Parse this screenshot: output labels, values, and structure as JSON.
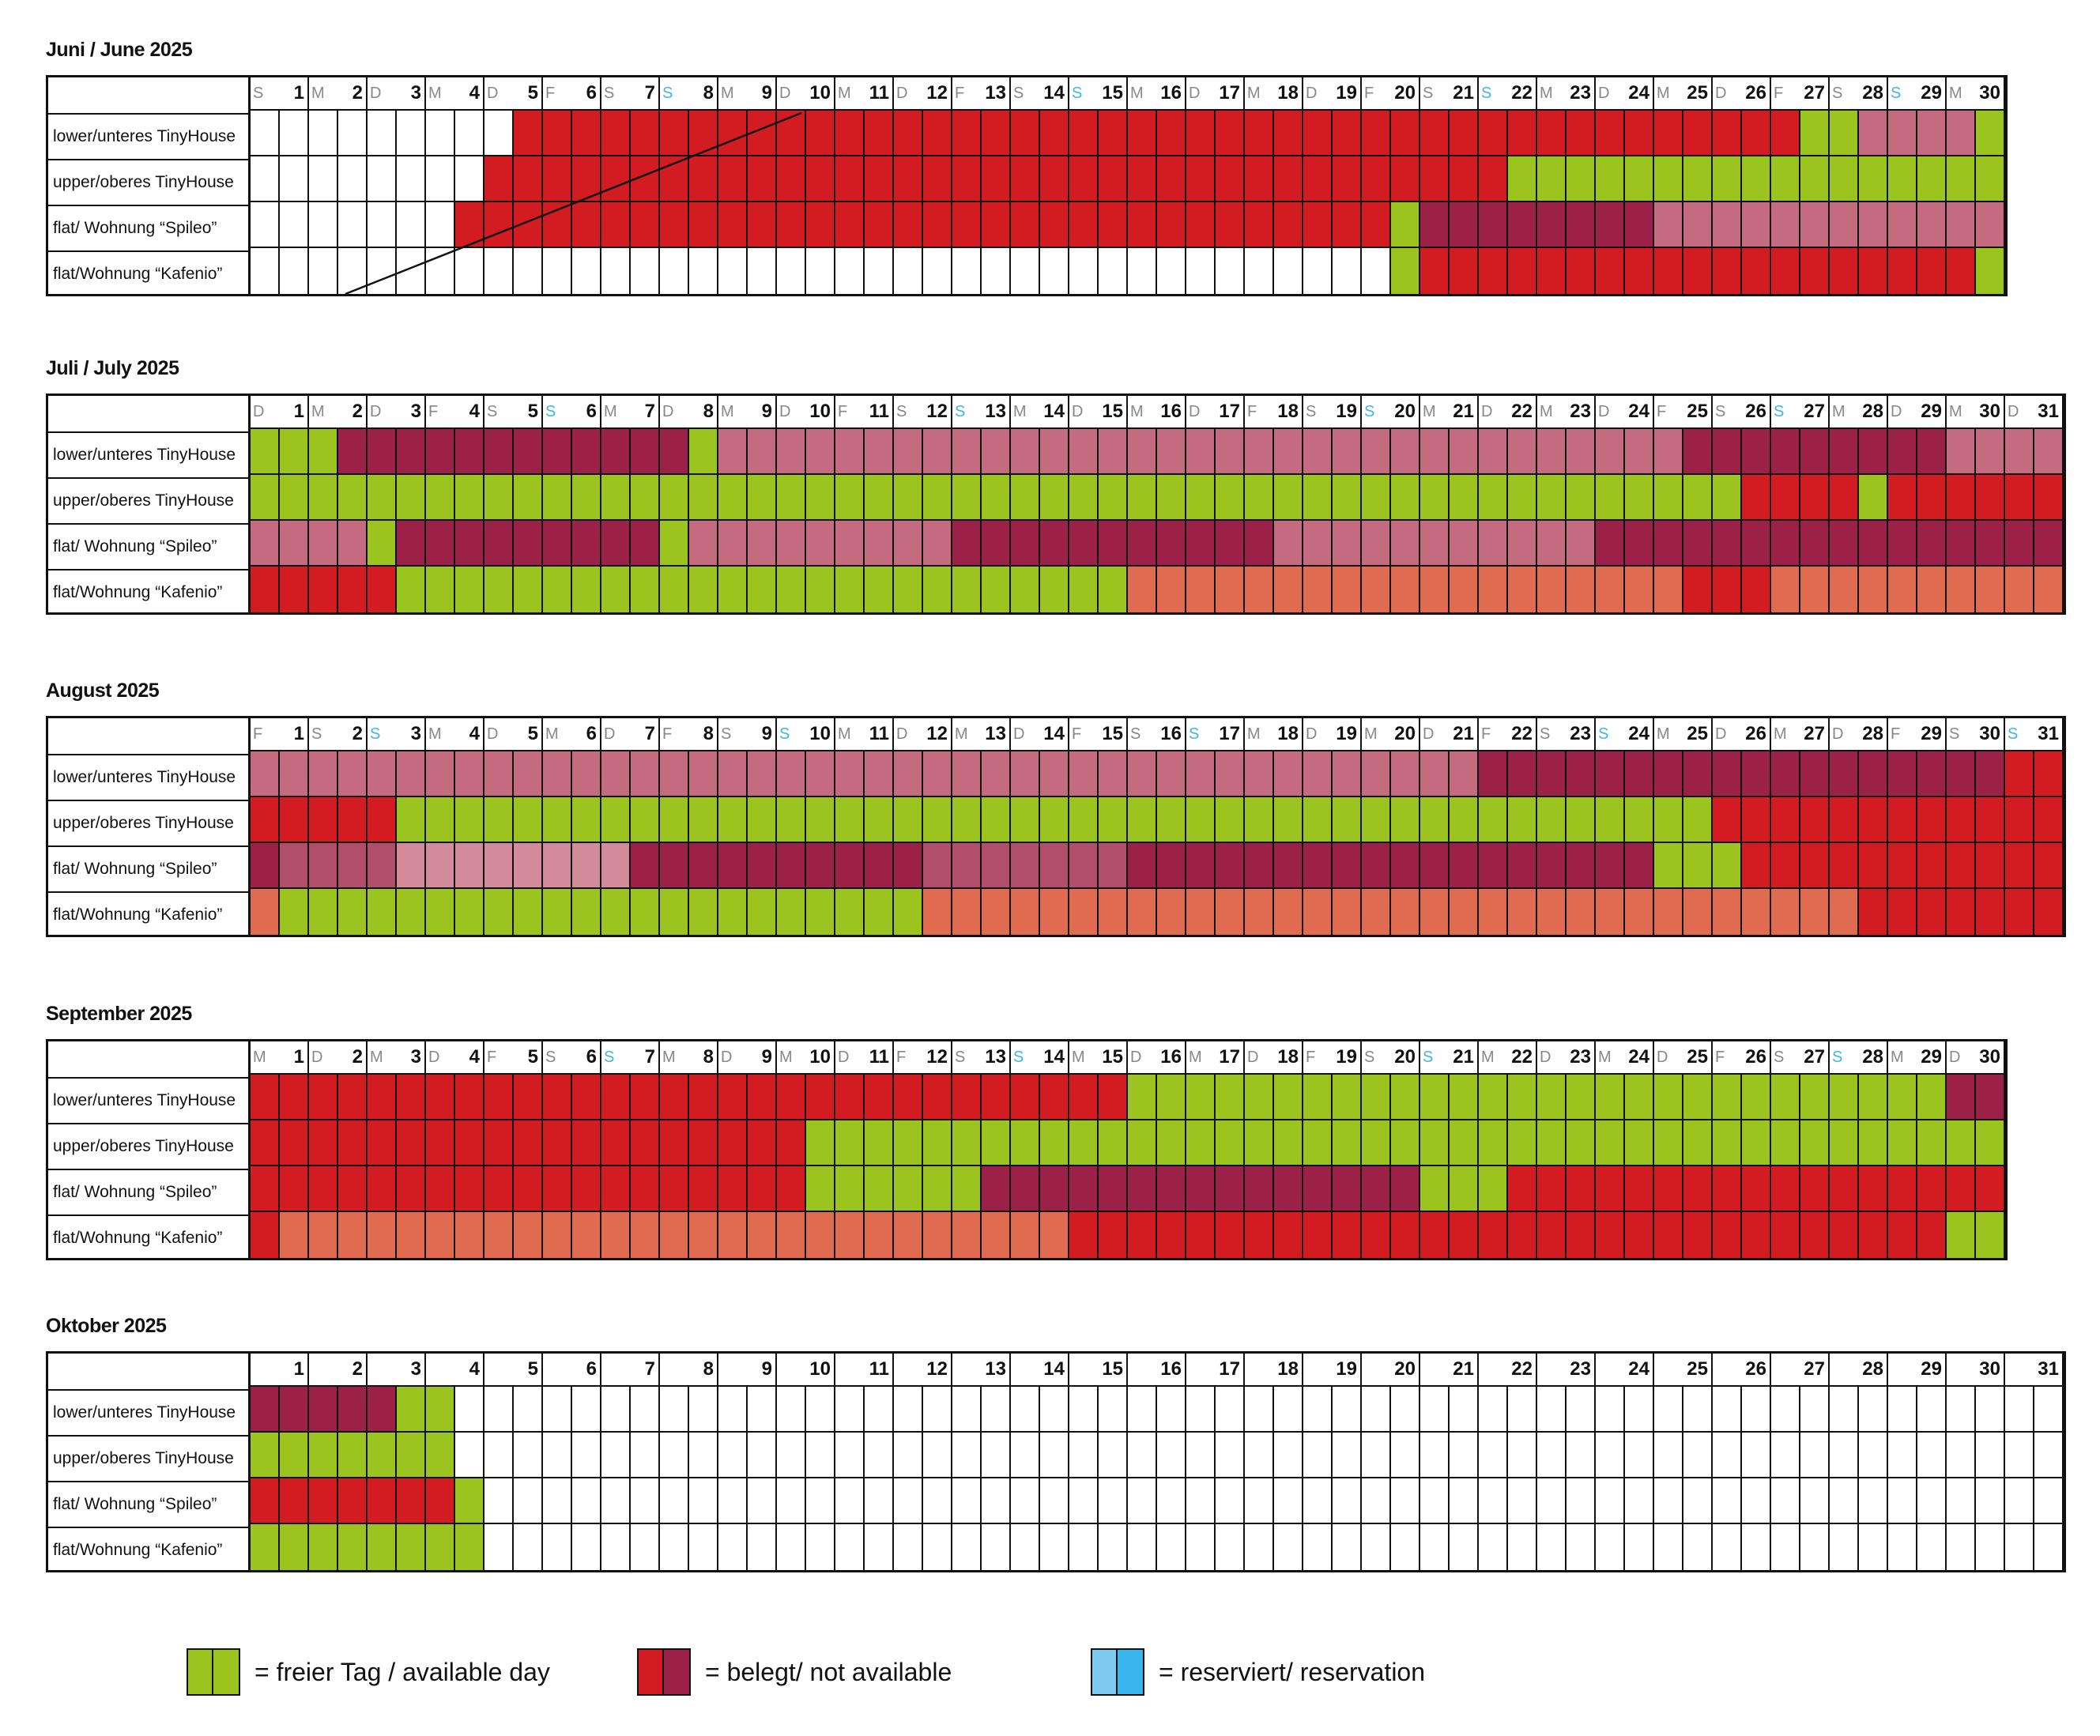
{
  "colors": {
    "free": "#9bc41e",
    "booked_red": "#d31b22",
    "booked_dark": "#9b2149",
    "booked_pink": "#c46b7f",
    "booked_mauve": "#b14e6c",
    "booked_lightpink": "#d38a9b",
    "booked_salmon": "#e06b51",
    "reserved": "#f28a30",
    "reserved_legend_1": "#7fcaf0",
    "reserved_legend_2": "#3bb6ec",
    "empty": "#ffffff"
  },
  "rows": [
    "lower/unteres TinyHouse",
    "upper/oberes TinyHouse",
    "flat/ Wohnung “Spileo”",
    "flat/Wohnung “Kafenio”"
  ],
  "months": [
    {
      "title": "Juni / June 2025",
      "days": [
        "1",
        "2",
        "3",
        "4",
        "5",
        "6",
        "7",
        "8",
        "9",
        "10",
        "11",
        "12",
        "13",
        "14",
        "15",
        "16",
        "17",
        "18",
        "19",
        "20",
        "21",
        "22",
        "23",
        "24",
        "25",
        "26",
        "27",
        "28",
        "29",
        "30"
      ],
      "weekdays": [
        "S",
        "M",
        "D",
        "M",
        "D",
        "F",
        "S",
        "S",
        "M",
        "D",
        "M",
        "D",
        "F",
        "S",
        "S",
        "M",
        "D",
        "M",
        "D",
        "F",
        "S",
        "S",
        "M",
        "D",
        "M",
        "D",
        "F",
        "S",
        "S",
        "M"
      ],
      "grid": [
        "wwwwwwwwwwwwwwwwwwwwwwRRRRRRRRRRRRRRRRRRRRRRRRRRRRRRRRRRRRRRRRRRGGPPPPGGGG",
        "wwwwwwwwwwwwwwwwwwwwwwRRRRRRRRRRRRRRRRRRRRRRRRRRRRRRRRRRRRRRRRRRRRRRRRRGGGG",
        "wwwwwwwwwwwwwwwwwwwwwwwwwwwwwwwwwwwwwwwwwwwwwwwwwwwwwwwwwwwwwwwwwwwwwwwwwww",
        "wwwwwwwwwwwwwwwwwwwwwwwwwwwwwwwwwwwwwwwwwwwwwwwwwwwwwwwwwwwwwwwwwwwwwwwwwww"
      ]
    },
    {
      "title": "Juli / July 2025",
      "days": [
        "1",
        "2",
        "3",
        "4",
        "5",
        "6",
        "7",
        "8",
        "9",
        "10",
        "11",
        "12",
        "13",
        "14",
        "15",
        "16",
        "17",
        "18",
        "19",
        "20",
        "21",
        "22",
        "23",
        "24",
        "25",
        "26",
        "27",
        "28",
        "29",
        "30",
        "31"
      ],
      "weekdays": [
        "D",
        "M",
        "D",
        "F",
        "S",
        "S",
        "M",
        "D",
        "M",
        "D",
        "F",
        "S",
        "S",
        "M",
        "D",
        "M",
        "D",
        "F",
        "S",
        "S",
        "M",
        "D",
        "M",
        "D",
        "F",
        "S",
        "S",
        "M",
        "D",
        "M",
        "D"
      ]
    },
    {
      "title": "August 2025",
      "days": [
        "1",
        "2",
        "3",
        "4",
        "5",
        "6",
        "7",
        "8",
        "9",
        "10",
        "11",
        "12",
        "13",
        "14",
        "15",
        "16",
        "17",
        "18",
        "19",
        "20",
        "21",
        "22",
        "23",
        "24",
        "25",
        "26",
        "27",
        "28",
        "29",
        "30",
        "31"
      ],
      "weekdays": [
        "F",
        "S",
        "S",
        "M",
        "D",
        "M",
        "D",
        "F",
        "S",
        "S",
        "M",
        "D",
        "M",
        "D",
        "F",
        "S",
        "S",
        "M",
        "D",
        "M",
        "D",
        "F",
        "S",
        "S",
        "M",
        "D",
        "M",
        "D",
        "F",
        "S",
        "S"
      ]
    },
    {
      "title": "September 2025",
      "days": [
        "1",
        "2",
        "3",
        "4",
        "5",
        "6",
        "7",
        "8",
        "9",
        "10",
        "11",
        "12",
        "13",
        "14",
        "15",
        "16",
        "17",
        "18",
        "19",
        "20",
        "21",
        "22",
        "23",
        "24",
        "25",
        "26",
        "27",
        "28",
        "29",
        "30"
      ],
      "weekdays": [
        "M",
        "D",
        "M",
        "D",
        "F",
        "S",
        "S",
        "M",
        "D",
        "M",
        "D",
        "F",
        "S",
        "S",
        "M",
        "D",
        "M",
        "D",
        "F",
        "S",
        "S",
        "M",
        "D",
        "M",
        "D",
        "F",
        "S",
        "S",
        "M",
        "D"
      ]
    },
    {
      "title": "Oktober 2025",
      "days": [
        "1",
        "2",
        "3",
        "4",
        "5",
        "6",
        "7",
        "8",
        "9",
        "10",
        "11",
        "12",
        "13",
        "14",
        "15",
        "16",
        "17",
        "18",
        "19",
        "20",
        "21",
        "22",
        "23",
        "24",
        "25",
        "26",
        "27",
        "28",
        "29",
        "30",
        "31"
      ],
      "weekdays": []
    }
  ],
  "grids": {
    "juni": [
      "wwwwwwwwwwwwwwwwwwwwRRRRRRRRRRRRRRRRRRRRRRRRRRRRRRRRRRRRRRRRRRRRRRRRRRRRRRRRRRRRRRRRRRRRRRRRGGGPPPPPPGGGG",
      "x"
    ]
  },
  "bookings": {
    "juni": {
      "lower": "wwwwwwwwwwwwwwwwwwwwwwwwwwwwwwwwwwwwwwwwwwwwwwwwwwwwwwwwwwwwwwwwwwwwwwwwwwwww",
      "note": ""
    }
  },
  "cal": {
    "juni": [
      "wwwwwwwwwwwwwwwwwwwRRRRRRRRRRRRRRRRRRRRRRRRRRRRRRRRRRRRRRRRRRRRRRRRRRRRRRRRRRGGPPPPPPGGGG",
      "wwwwwwwwwwwwwwwwwwwRRRRRRRRRRRRRRRRRRRRRRRRRRRRRRRRRRRRRRRRRRRRRRRRRRRRRRRRRRRRRRRRRRRRRRRRRRRRRRRRRR",
      "",
      ""
    ]
  },
  "legend": {
    "free": "= freier Tag / available day",
    "booked": "= belegt/ not available",
    "reserved": "= reserviert/ reservation"
  },
  "halfdays": {
    "juni": [
      "wwwwwwwwwwwwwwwwwwwwwwwwwwwwwwwwwwwwwwwwwwwwwwwwwwwwwwwwwwwwwwwwwwwwwwwwwwww",
      "",
      "",
      ""
    ]
  },
  "schedule": {
    "juni": [
      "wwwwwwwwwwwwwwwwwwwRRRRRRRRRRRRRRRRRRRRRRRRRRRRRRRRRRRRRRRRRRRRRRRRRRRRRGGPPPPPPPPGGGG",
      "wwwwwwwwwwwwwwwwwwwwwwwwwwwwwwwwwwwwwwwwwwwwwwwwwwwwwwwwwwwwwwwwwwwwwwwwwwwwwwwwwwwwwwwwwwwwwwwwwwwwww",
      "",
      ""
    ]
  },
  "cells": {
    "juni": [
      "wwwwwwwwwwwwwwwwwwwRRRRRRRRRRRRRRRRRRRRRRRRRRRRRRRRRRRRRRRRRRRRRRRRRRRRRRRRRRRRRRRGGPPPPPPPPGGGG",
      "wwwwwwwwwwwwwwwwwRRRRRRRRRRRRRRRRRRRRRRRRRRRRRRRRRRRRRRRRRRRRRRRRRRRRGGGGGGGGGGGGGGGGGGGGGGGGGGGGGGG",
      "wwwwwwwwwwwwwwwwwwwRRRRRRRRRRRRRRRRRRRRRRRRRRRRRRRRRRRRRRRRRRRRRRRGGGGDDDDDDDDDDDPPPPPPPPPPPPPPPPPPPPPP",
      "wwwwwwwwwwwwwwwwwwwwwwwwwwwwwwwwwwwwwwwwwwwwwwwwwwwwwwwwwwwwwwwwwwwwwGGGGRRRRRRRRRRRRRRRRRRRRRRRRRRRRGGGR"
    ],
    "juli": [
      "GGGGGDDDDDDDDDDDDDDDDDDDDDDGGPPPPPPPPPPPPPPPPPPPPPPPPPPPPPPPPPPPPPPPPPPPPPPPPPPPPPPPPPPPPPPPPPPPDDDDDDDDDDDDPPPPPPPP",
      "GGGGGGGGGGGGGGGGGGGGGGGGGGGGGGGGGGGGGGGGGGGGGGGGGGGGGGGGGGGGGGGGGGGGGGGGGGGGGGGGGGGGGGGGGGGGGGGGGGGGGGGGGGRRRRRGGRRRRRRRRRR",
      "PPPPPGGDDDDDDDDDDDDDDDDDDGGPPPPPPPPPPPPPPPPPPPPDDDDDDDDDDDDDDDDDDDPPPPPPPPPPPPPPPPPPPPDDDDDDDDDDDDDDDDDDDDDDDDDDDDDDDDDDDDD",
      "RRRRRRRRGGGGGGGGGGGGGGGGGGGGGGGGGGGGGGGGGGGGGGGGGGGGGGGGGGGGGSSSSSSSSSSSSSSSSSSSSSSSSSSSSSSSSSSSSSSSSSSSSSSSSSRRRRRRSSSSSSSSSSSSSSSSS"
    ]
  },
  "data": {
    "juni": [
      "............................RRRRRRRRRRRRRRRRRRRRRRRRRRRRRRRRRRRRRRRRRRRRRRRRRRRRRRRRRRGGGPPPPPPGGGG",
      "........................RRRRRRRRRRRRRRRRRRRRRRRRRRRRRRRRRRRRRRRRRGGGGGGGGGGGGGGGGGGGGGGGGGGGGGGGGGGGG",
      "............................RRRRRRRRRRRRRRRRRRRRRRRRRRRRRRRRRRRRRRRRRRRRRRRRRRRRRGGGGDDDDDDDDDDDDDDDPPPPPPPPPPPPPPPPPPPPPPPPPPPPPPPPP",
      "...................................................................................................GGGGRRRRRRRRRRRRRRRRRRRRRRRRRRRRRRRRRRRRRRRRRRGGGR"
    ]
  },
  "halfcells": {
    "juni": [
      "wwwwwwwwwwwwwwwwwwwRRRRRRRRRRRRRRRRRRRRRRRRRRRRRRRRRRRRRRRRGGPPPPPPPPGGGG",
      "wwwwwwwwwwwwwwwwwRRRRRRRRRRRRRRRRRRRRRRRRRRRRRRRRRRRRRRRRRRRRRRRRRRRRRRRRRRRRRRRRRRRRRRRRRRRRRRRRRRRRRRRRRR",
      "",
      ""
    ]
  },
  "final": {
    "juni": [
      "wwwwwwwwwwwwwwwwwwwRRRRRRRRRRRRRRRRRRRRRRRRRRRRRRRRRRRRRRRRRRRRRRRRRRRRGGPPPPPPPPGGGG",
      "wwwwwwwwwwwwwwwwwRRRRRRRRRRRRRRRRRRRRRRRRRRRRRRRRRRRRRRRRRRRRRRRRRRRRRRRRRRRRRRRRGGGGGGGGGGGGGGGGGGGGGGGGGGGGGGGGGGGGGGGGGGGG",
      "",
      ""
    ]
  },
  "half": {
    "juni": [
      "wwwwwwwwwwwwwwwwwwwRRRRRRRRRRRRRRRRRRRRRRRRRRRRRRRRRRRRRRRRRRRRRRRRRRRRRRRGGPPPPPPPPGGGG",
      "wwwwwwwwwwwwwwwwwRRRRRRRRRRRRRRRRRRRRRRRRRRRRRRRRRRRRRRRRRRRRRRGGGGGGGGGGGGGGGGGGGGGGGGGGGGGGGGGGGGGGGGGGGG",
      "wwwwwwwwwwwwwwwwwwwRRRRRRRRRRRRRRRRRRRRRRRRRRRRRRRRRRRRRRRRRRRRRRRRRRRRRRRRRRRRRRRRGGGGDDDDDDDDDDDDDDDDDDDDPPPPPPPPPPPPPPPPPPPPPPPPPPPPPPPPPPP",
      "wwwwwwwwwwwwwwwwwwwwwwwwwwwwwwwwwwwwwwwwwwwwwwwwwwwwwwwwwwwwwwwwwwwwwwwwwwwwwwwwwwwwwGGGGRRRRRRRRRRRRRRRRRRRRRRRRRRRRRRRRRRRRRRRRRRRRRRRRRRRGGGGR"
    ]
  },
  "availability": [
    {
      "rows": [
        "wwwwwwwwwwwwwwwwwwwRRRRRRRRRRRRRRRRRRRRRRRRRRRRRRRRRRRRRRRRRRRRRRRRRRRRRRRRRRRRRRRRRRRRRRRRRRRRRRRRRRRRRRRRRRRRRRRGGPPPPPPPPGGGG",
        "wwwwwwwwwwwwwwwwwRRRRRRRRRRRRRRRRRRRRRRRRRRRRRRRRRRRRRRRRRRRRRRRRRRRRRRRRRRRRRRRRRRRRRRGGGGGGGGGGGGGGGGGGGGGGGGGGGGGGGGGGGGGG",
        "wwwwwwwwwwwwwwwwwwwRRRRRRRRRRRRRRRRRRRRRRRRRRRRRRRRRRRRRRRRRRRRRRRRRRRRRRRRRRRRRRRRRRRGGGGDDDDDDDDDDDDDDDDDDDDPPPPPPPPPPPPPPPPPPPPPPPPPPPP",
        "wwwwwwwwwwwwwwwwwwwwwwwwwwwwwwwwwwwwwwwwwwwwwwwwwwwwwwwwwwwwwwwwwwwwwwwwwwwwwwwwwwwwwwwGGGGRRRRRRRRRRRRRRRRRRRRRRRRRRRRRRRRRRRRRRRRRRRRRGGGGR"
      ]
    }
  ],
  "table": [
    {
      "rows": [
        "wwwwwwwwwwwwwwwwwwwwRRRRRRRRRRRRRRRRRRRRRRRRRRRRRRRRRRRRRRRRRRRRRRRRRRRRRRRRRRRRRRRRRGGGPPPPPPGGGG",
        "wwwwwwwwwwwwwwwwwwRRRRRRRRRRRRRRRRRRRRRRRRRRRRRRRRRRRRRRRRRRRRRRRRRRRRRRGGGGGGGGGGGGGGGGGGGGGGGGGGGG",
        "wwwwwwwwwwwwwwwwwwwwRRRRRRRRRRRRRRRRRRRRRRRRRRRRRRRRRRRRRRRRRRRRRRRRRRRRRRRRRGGGGDDDDDDDDDDDDDDDDPPPPPPPPPPPPPPPPPPPPPPPPPPPPPP",
        "wwwwwwwwwwwwwwwwwwwwwwwwwwwwwwwwwwwwwwwwwwwwwwwwwwwwwwwwwwwwwwwwwwwwwwwwwwwwwwwGGGGRRRRRRRRRRRRRRRRRRRRRRRRRRRRRRRRRRRRRRRRRRRRRRRGGGGR"
      ]
    }
  ],
  "plan": [
    [
      "wwwwwwwwwwwwwwwwwwwwRRRRRRRRRRRRRRRRRRRRRRRRRRRRRRRRRRRRRRRRRRRRRRRRRRRRRRRRRRRRRRRRGGGPPPPPPGGGG",
      "wwwwwwwwwwwwwwwwwwRRRRRRRRRRRRRRRRRRRRRRRRRRRRRRRRRRRRRRRRRRRRRRRRRRRRRRRRRGGGGGGGGGGGGGGGGGGGGGGGGG",
      "wwwwwwwwwwwwwwwwwwwwRRRRRRRRRRRRRRRRRRRRRRRRRRRRRRRRRRRRRRRRRRRRRRRRRRRRRRRRRRRRRGGGGDDDDDDDDDDDDPPPPPPPPPPPPPPPPPPPPPPPPP",
      "wwwwwwwwwwwwwwwwwwwwwwwwwwwwwwwwwwwwwwwwwwwwwwwwwwwwwwwwwwwwwwwwwwwwwwwwwwwwwwwwwwwwGGGGRRRRRRRRRRRRRRRRRRRRRRRRRRRRRRRRRRRRRRRRRRRRRGGGGR"
    ]
  ],
  "occupancy": [
    {
      "title": "Juni / June 2025",
      "rows": [
        "wwwwwwwwwwwwwwwwwwwRRRRRRRRRRRRRRRRRRRRRRRRRRRRRRRRRRRRRRRRRRRRRRRRRRRRRRRRRRRRRRRRRRRRRRRRRRRRRRRRRRRRRRRRRRRRRGGGGPPPPPPPPGGGG",
        "wwwwwwwwwwwwwwwwwRRRRRRRRRRRRRRRRRRRRRRRRRRRRRRRRRRRRRRRRRRRRRRRRRRRRRRRRRRRRRRRRRRRRRRRRRRRRRRRRRRRRRGGGGGGGGGGGGGGGGGGGGGGGGGGGGGGGGGGGGGGGGGGG",
        "wwwwwwwwwwwwwwwwwwwRRRRRRRRRRRRRRRRRRRRRRRRRRRRRRRRRRRRRRRRRRRRRRRRRRRRRRRRRRRRRRRRRRRRRRRRRRRRRRRRRRRRRRRRRRRGGGGDDDDDDDDDDDDDDDDDDDDDDDPPPPPPPPPPPPPPPPPPPPPPPPPPPPPPPPPPP",
        "wwwwwwwwwwwwwwwwwwwwwwwwwwwwwwwwwwwwwwwwwwwwwwwwwwwwwwwwwwwwwwwwwwwwwwwwwwwwwwwwwwwwwwwwwwwwwwwwwwwwwwwwwwwwwwwwGGGGRRRRRRRRRRRRRRRRRRRRRRRRRRRRRRRRRRRRRRRRRRRRRRRRRRRRRRGGGGR"
      ]
    },
    {
      "title": "Juli / July 2025",
      "rows": [
        "GGGGGDDDDDDDDDDDDDDDDDDDDDDDDDDGGGGPPPPPPPPPPPPPPPPPPPPPPPPPPPPPPPPPPPPPPPPPPPPPPPPPPPPPPPPPPPPPPPPPPPPPPPPPDDDDDDDDDDDDDDDDDDPPPPPPPPPPP",
        "GGGGGGGGGGGGGGGGGGGGGGGGGGGGGGGGGGGGGGGGGGGGGGGGGGGGGGGGGGGGGGGGGGGGGGGGGGGGGGGGGGGGGGGGGGGGGGGGGGGGGGGGGGGGGGGGGGGGGGGGRRRRRRRRGGGRRRRRRRRRRRRRRR",
        "PPPPPPPPGGGGDDDDDDDDDDDDDDDDDDDDDDGGGGPPPPPPPPPPPPPPPPPPPPPPDDDDDDDDDDDDDDDDDDDDDDDDDDDDDPPPPPPPPPPPPPPPPPPPPPPPPPPPPPDDDDDDDDDDDDDDDDDDDDDDDDDDDDDDDDDDDDDDDDDD",
        "RRRRRRRRRRRRGGGGGGGGGGGGGGGGGGGGGGGGGGGGGGGGGGGGGGGGGGGGGGGGGGGGGGGGGGGGGGGGGGGGGGGGGGGSSSSSSSSSSSSSSSSSSSSSSSSSSSSSSSSSSSSSSSSSSSSSSSSSSSSSSSSSRRRRRRRRRRSSSSSSSSSSSSSSSSSSSSSSSSSSSSSS"
      ]
    },
    {
      "title": "August 2025",
      "rows": [
        "PPPPPPPPPPPPPPPPPPPPPPPPPPPPPPPPPPPPPPPPPPPPPPPPPPPPPPPPPPPPPPPPPPPPPPPPPPPPPPPPPPPPPPPPPPPPPPPPPPPPPPPPPPPPPPPPPDDDDDDDDDDDDDDDDDDDDDDDDDDDDDDDDDDDDDDDDDDDDDDDOORRRRRR",
        "RRRRRRRRRRRRGGGGGGGGGGGGGGGGGGGGGGGGGGGGGGGGGGGGGGGGGGGGGGGGGGGGGGGGGGGGGGGGGGGGGGGGGGGGGGGGGGGGGGGGGGGGGGGGGGGGGGGGGGGGGGGGGGGGGGGGGGGGRRRRRRRRRRRRRRRRRRRRRRRRRRRRRRRRR",
        "DDMMMMMMMMMMLLLLLLLLLLLLLLLLLLLLLLLDDDDDDDDDDDDDDDDDDDDDDDDDDDDDDMMMMMMMMMMMMMMMMMMMMDDDDDDDDDDDDDDDDDDDDDDDDDDDDDDDDDDDDDDDDDDDDDDDDDDDDGGGGGGGRRRRRRRRRRRRRRRRRRRRRRRRRRRRRRRRRR",
        "SSGGGGGGGGGGGGGGGGGGGGGGGGGGGGGGGGGGGGGGGGGGGGGGGGGGGGGGGGGGSSSSSSSSSSSSSSSSSSSSSSSSSSSSSSSSSSSSSSSSSSSSSSSSSSSSSSSSSSSSSSSSSSSSSSSSSSSSSSSSSSSSSSSRRRRRRRRRRRRRRRRRRR"
      ]
    },
    {
      "title": "September 2025",
      "rows": [
        "RRRRRRRRRRRRRRRRRRRRRRRRRRRRRRRRRRRRRRRRRRRRRRRRRRRRRRRRRRRRRRRRRRRRRRRRRRRRRRRRRGGGGGGGGGGGGGGGGGGGGGGGGGGGGGGGGGGGGGGGGGGGGGGGGGGGGGGGGGGGGGGGGGGGGGGGGGGGGGDDDDDDD",
        "RRRRRRRRRRRRRRRRRRRRRRRRRRRRRRRRRRRRRRRRRRRRRRRRRRRGGGGGGGGGGGGGGGGGGGGGGGGGGGGGGGGGGGGGGGGGGGGGGGGGGGGGGGGGGGGGGGGGGGGGGGGGGGGGGGGGGGGGGGGGGGGGGGGGGGGGGGGGGGGGGGG",
        "RRRRRRRRRRRRRRRRRRRRRRRRRRRRRRRRRRRRRRRRRRRRRRRRRRRGGGGGGGGGGGGGGGGDDDDDDDDDDDDDDDDDDDDDDDDDDDDDDDDDDDDDDDDDDGGGGGGGGGRRRRRRRRRRRRRRRRRRRRRRRRRRRRRRRRRRRRRRRRRRRRRRRR",
        "RSSSSSSSSSSSSSSSSSSSSSSSSSSSSSSSSSSSSSSSSSSSSSSSSSSSSSSSSSSSSSSSSSSSSSSSSSSRRRRRRRRRRRRRRRRRRRRRRRRRRRRRRRRRRRRRRRRRRRRRRRRRRRRRRRRRRRRRRRRRRRRRRRRRRRRRRRRRRRGGGGGGG"
      ]
    },
    {
      "title": "Oktober 2025",
      "rows": [
        "DDDDDDDDDDDDDDDGGGGGGwwwwwwwwwwwwwwwwwwwwwwwwwwwwwwwwwwwwwwwwwwwwwwwwwwwwwwwwwwwwwwwwwwwwwwwwwwwwwwwwwwwwwwwwwwwwwwwwwwwwwwwwwwwwwwwwwwwwwwwwwwwwwwwwwwwwwwwwwwwwwwwwwwwwwwwwwwwwwwwwwwwww",
        "GGGGGGGGGGGGGGGGGGGGGwwwwwwwwwwwwwwwwwwwwwwwwwwwwwwwwwwwwwwwwwwwwwwwwwwwwwwwwwwwwwwwwwwwwwwwwwwwwwwwwwwwwwwwwwwwwwwwwwwwwwwwwwwwwwwwwwwwwwwwwwwwwwwwwwwwwwwwwwwwwwwwwwwwwwwwwwwwwwwwwwwwww",
        "RRRRRRRRRRRRRRRRRRGGGGGwwwwwwwwwwwwwwwwwwwwwwwwwwwwwwwwwwwwwwwwwwwwwwwwwwwwwwwwwwwwwwwwwwwwwwwwwwwwwwwwwwwwwwwwwwwwwwwwwwwwwwwwwwwwwwwwwwwwwwwwwwwwwwwwwwwwwwwwwwwwwwwwwwwwwwwwwwwwwwwwww",
        "GGGGGGGGGGGGGGGGGGGGGwwwwwwwwwwwwwwwwwwwwwwwwwwwwwwwwwwwwwwwwwwwwwwwwwwwwwwwwwwwwwwwwwwwwwwwwwwwwwwwwwwwwwwwwwwwwwwwwwwwwwwwwwwwwwwwwwwwwwwwwwwwwwwwwwwwwwwwwwwwwwwwwwwwwwwwwwwwwwwwwwwww"
      ]
    }
  ]
}
